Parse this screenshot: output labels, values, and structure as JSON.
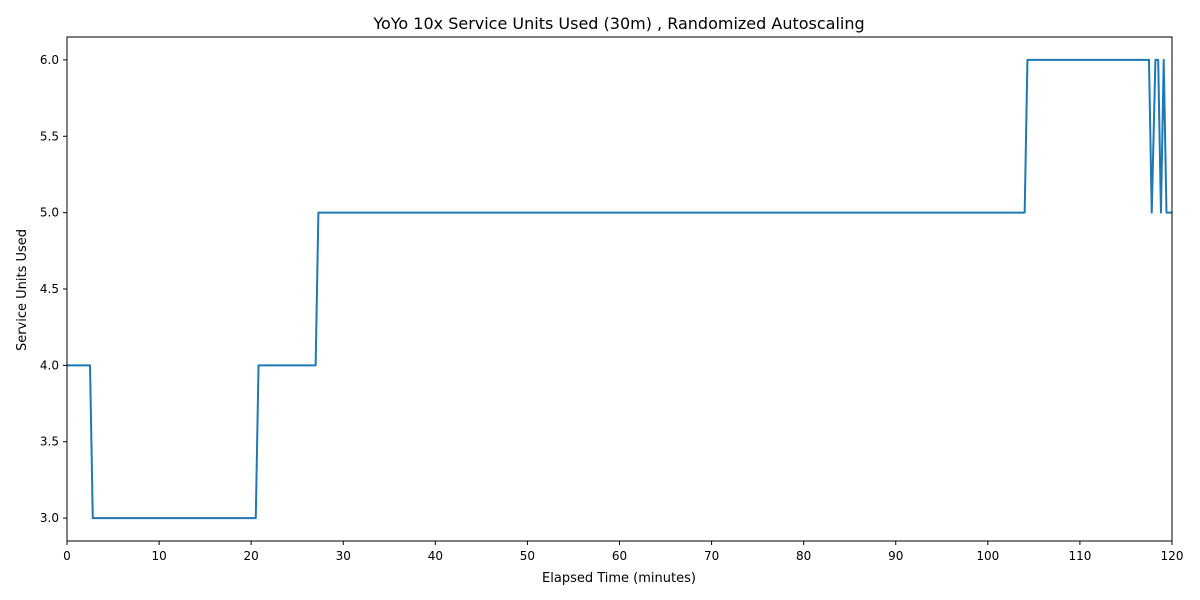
{
  "chart_data": {
    "type": "line",
    "title": "YoYo 10x Service Units Used (30m) , Randomized Autoscaling",
    "xlabel": "Elapsed Time (minutes)",
    "ylabel": "Service Units Used",
    "xlim": [
      0,
      120
    ],
    "ylim": [
      2.85,
      6.15
    ],
    "xticks": [
      0,
      10,
      20,
      30,
      40,
      50,
      60,
      70,
      80,
      90,
      100,
      110,
      120
    ],
    "yticks": [
      3.0,
      3.5,
      4.0,
      4.5,
      5.0,
      5.5,
      6.0
    ],
    "ytick_labels": [
      "3.0",
      "3.5",
      "4.0",
      "4.5",
      "5.0",
      "5.5",
      "6.0"
    ],
    "grid": false,
    "legend": "none",
    "line_color": "#1f77b4",
    "series": [
      {
        "x": [
          0,
          2.5,
          2.8,
          20.5,
          20.8,
          27.0,
          27.3,
          104.0,
          104.3,
          117.5,
          117.8,
          118.2,
          118.5,
          118.8,
          119.1,
          119.4,
          120
        ],
        "values": [
          4,
          4,
          3,
          3,
          4,
          4,
          5,
          5,
          6,
          6,
          5,
          6,
          6,
          5,
          6,
          5,
          5
        ]
      }
    ]
  }
}
